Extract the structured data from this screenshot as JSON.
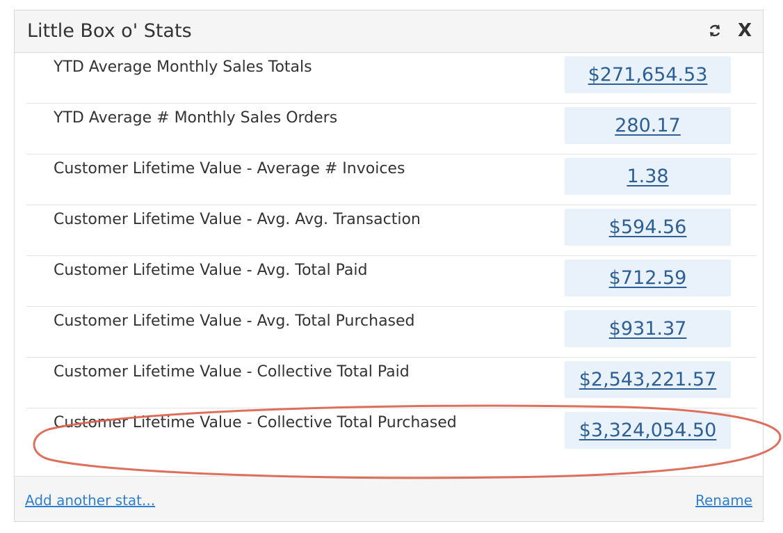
{
  "widget": {
    "title": "Little Box o' Stats",
    "close_label": "X"
  },
  "stats": [
    {
      "label": "YTD Average Monthly Sales Totals",
      "value": "$271,654.53"
    },
    {
      "label": "YTD Average # Monthly Sales Orders",
      "value": "280.17"
    },
    {
      "label": "Customer Lifetime Value - Average # Invoices",
      "value": "1.38"
    },
    {
      "label": "Customer Lifetime Value - Avg. Avg. Transaction",
      "value": "$594.56"
    },
    {
      "label": "Customer Lifetime Value - Avg. Total Paid",
      "value": "$712.59"
    },
    {
      "label": "Customer Lifetime Value - Avg. Total Purchased",
      "value": "$931.37"
    },
    {
      "label": "Customer Lifetime Value - Collective Total Paid",
      "value": "$2,543,221.57"
    },
    {
      "label": "Customer Lifetime Value - Collective Total Purchased",
      "value": "$3,324,054.50"
    }
  ],
  "footer": {
    "add_label": "Add another stat...",
    "rename_label": "Rename"
  },
  "colors": {
    "value_text": "#2b5f96",
    "value_bg": "#e9f1fa",
    "link": "#2f7fcf",
    "highlight_ellipse": "#d9604a"
  },
  "icons": {
    "refresh": "refresh-icon",
    "close": "close-icon"
  }
}
